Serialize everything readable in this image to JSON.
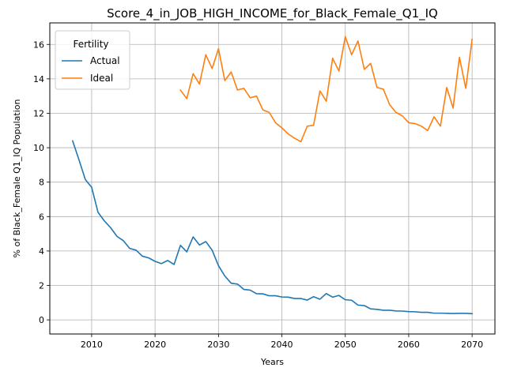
{
  "chart_data": {
    "type": "line",
    "title": "Score_4_in_JOB_HIGH_INCOME_for_Black_Female_Q1_IQ",
    "xlabel": "Years",
    "ylabel": "% of Black_Female Q1_IQ Population",
    "xlim": [
      2003.4,
      2073.6
    ],
    "ylim": [
      -0.82,
      17.25
    ],
    "xticks": [
      2010,
      2020,
      2030,
      2040,
      2050,
      2060,
      2070
    ],
    "yticks": [
      0,
      2,
      4,
      6,
      8,
      10,
      12,
      14,
      16
    ],
    "grid": true,
    "legend": {
      "title": "Fertility",
      "position": "top-left"
    },
    "series": [
      {
        "name": "Actual",
        "color": "#1f77b4",
        "x": [
          2007,
          2008,
          2009,
          2010,
          2011,
          2012,
          2013,
          2014,
          2015,
          2016,
          2017,
          2018,
          2019,
          2020,
          2021,
          2022,
          2023,
          2024,
          2025,
          2026,
          2027,
          2028,
          2029,
          2030,
          2031,
          2032,
          2033,
          2034,
          2035,
          2036,
          2037,
          2038,
          2039,
          2040,
          2041,
          2042,
          2043,
          2044,
          2045,
          2046,
          2047,
          2048,
          2049,
          2050,
          2051,
          2052,
          2053,
          2054,
          2055,
          2056,
          2057,
          2058,
          2059,
          2060,
          2061,
          2062,
          2063,
          2064,
          2065,
          2066,
          2067,
          2068,
          2069,
          2070
        ],
        "y": [
          10.4,
          9.3,
          8.15,
          7.7,
          6.25,
          5.75,
          5.35,
          4.85,
          4.6,
          4.15,
          4.05,
          3.7,
          3.6,
          3.4,
          3.27,
          3.45,
          3.22,
          4.33,
          3.95,
          4.82,
          4.35,
          4.55,
          4.05,
          3.15,
          2.55,
          2.13,
          2.08,
          1.77,
          1.73,
          1.52,
          1.51,
          1.4,
          1.4,
          1.33,
          1.32,
          1.24,
          1.24,
          1.15,
          1.35,
          1.2,
          1.53,
          1.32,
          1.42,
          1.17,
          1.14,
          0.86,
          0.83,
          0.64,
          0.61,
          0.56,
          0.56,
          0.52,
          0.51,
          0.48,
          0.47,
          0.44,
          0.44,
          0.39,
          0.39,
          0.38,
          0.37,
          0.38,
          0.38,
          0.36
        ]
      },
      {
        "name": "Ideal",
        "color": "#ff7f0e",
        "x": [
          2024,
          2025,
          2026,
          2027,
          2028,
          2029,
          2030,
          2031,
          2032,
          2033,
          2034,
          2035,
          2036,
          2037,
          2038,
          2039,
          2040,
          2041,
          2042,
          2043,
          2044,
          2045,
          2046,
          2047,
          2048,
          2049,
          2050,
          2051,
          2052,
          2053,
          2054,
          2055,
          2056,
          2057,
          2058,
          2059,
          2060,
          2061,
          2062,
          2063,
          2064,
          2065,
          2066,
          2067,
          2068,
          2069,
          2070
        ],
        "y": [
          13.35,
          12.85,
          14.3,
          13.7,
          15.4,
          14.6,
          15.75,
          13.9,
          14.4,
          13.35,
          13.45,
          12.9,
          13.0,
          12.2,
          12.05,
          11.45,
          11.15,
          10.8,
          10.55,
          10.35,
          11.25,
          11.3,
          13.3,
          12.7,
          15.2,
          14.45,
          16.45,
          15.4,
          16.2,
          14.55,
          14.9,
          13.5,
          13.4,
          12.5,
          12.05,
          11.85,
          11.45,
          11.4,
          11.25,
          11.0,
          11.8,
          11.25,
          13.5,
          12.3,
          15.25,
          13.45,
          16.3
        ]
      }
    ]
  }
}
